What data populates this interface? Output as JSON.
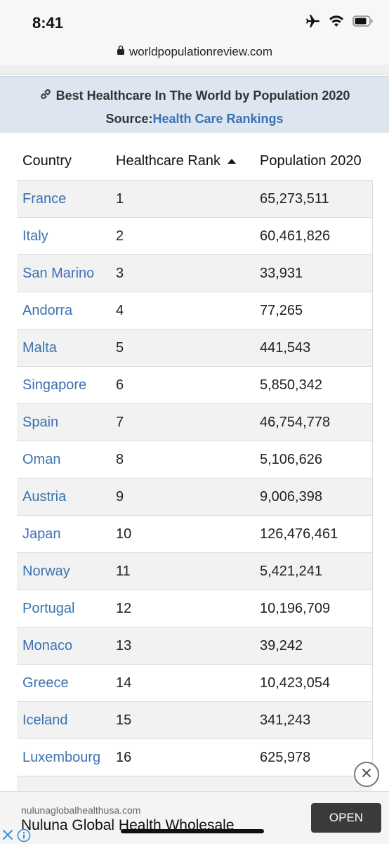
{
  "status_bar": {
    "time": "8:41"
  },
  "browser": {
    "url": "worldpopulationreview.com"
  },
  "table": {
    "title": "Best Healthcare In The World by Population 2020",
    "source_label": "Source:",
    "source_link": "Health Care Rankings",
    "columns": [
      "Country",
      "Healthcare Rank",
      "Population 2020"
    ],
    "rows": [
      {
        "country": "France",
        "rank": "1",
        "population": "65,273,511"
      },
      {
        "country": "Italy",
        "rank": "2",
        "population": "60,461,826"
      },
      {
        "country": "San Marino",
        "rank": "3",
        "population": "33,931"
      },
      {
        "country": "Andorra",
        "rank": "4",
        "population": "77,265"
      },
      {
        "country": "Malta",
        "rank": "5",
        "population": "441,543"
      },
      {
        "country": "Singapore",
        "rank": "6",
        "population": "5,850,342"
      },
      {
        "country": "Spain",
        "rank": "7",
        "population": "46,754,778"
      },
      {
        "country": "Oman",
        "rank": "8",
        "population": "5,106,626"
      },
      {
        "country": "Austria",
        "rank": "9",
        "population": "9,006,398"
      },
      {
        "country": "Japan",
        "rank": "10",
        "population": "126,476,461"
      },
      {
        "country": "Norway",
        "rank": "11",
        "population": "5,421,241"
      },
      {
        "country": "Portugal",
        "rank": "12",
        "population": "10,196,709"
      },
      {
        "country": "Monaco",
        "rank": "13",
        "population": "39,242"
      },
      {
        "country": "Greece",
        "rank": "14",
        "population": "10,423,054"
      },
      {
        "country": "Iceland",
        "rank": "15",
        "population": "341,243"
      },
      {
        "country": "Luxembourg",
        "rank": "16",
        "population": "625,978"
      }
    ]
  },
  "ad": {
    "domain": "nulunaglobalhealthusa.com",
    "title": "Nuluna Global Health Wholesale",
    "button": "OPEN"
  },
  "colors": {
    "link": "#3b72b2",
    "header_bg": "#dde5f0"
  }
}
